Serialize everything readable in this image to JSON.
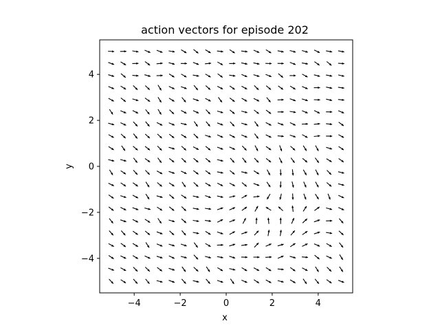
{
  "chart_data": {
    "type": "quiver",
    "title": "action vectors for episode 202",
    "xlabel": "x",
    "ylabel": "y",
    "xlim": [
      -5.5,
      5.5
    ],
    "ylim": [
      -5.5,
      5.5
    ],
    "xticks": [
      -4,
      -2,
      0,
      2,
      4
    ],
    "yticks": [
      -4,
      -2,
      0,
      2,
      4
    ],
    "xtick_labels": [
      "−4",
      "−2",
      "0",
      "2",
      "4"
    ],
    "ytick_labels": [
      "−4",
      "−2",
      "0",
      "2",
      "4"
    ],
    "grid": false,
    "legend": "none",
    "grid_points": {
      "x_start": -5.0,
      "x_end": 5.0,
      "x_count": 20,
      "y_start": -5.0,
      "y_end": 5.0,
      "y_count": 20
    },
    "field_description": "unit-length action arrows mostly pointing down-right; vectors swirl near a sink around (1.5, -1.5) and turn horizontal near the upper right",
    "arrow_color": "#000000"
  }
}
